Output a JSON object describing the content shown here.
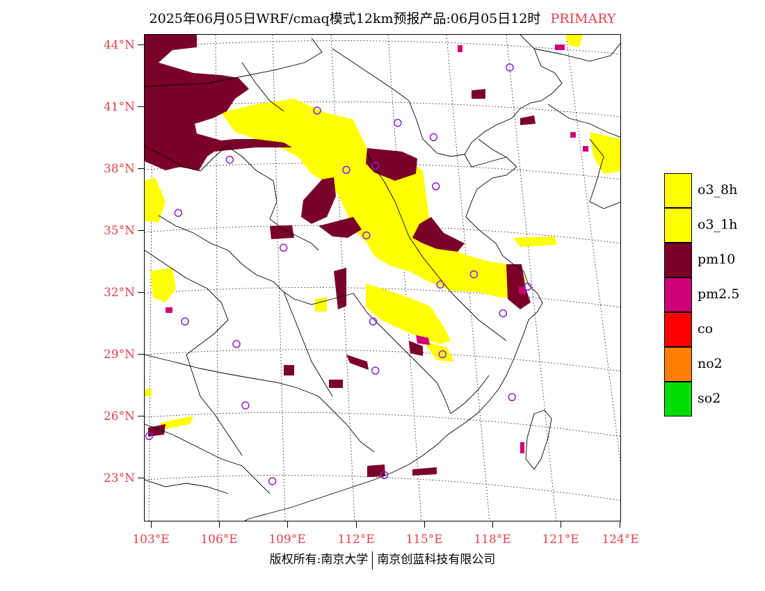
{
  "header": {
    "title": "2025年06月05日WRF/cmaq模式12km预报产品:06月05日12时",
    "tag": "PRIMARY"
  },
  "map": {
    "lat_labels": [
      "44°N",
      "41°N",
      "38°N",
      "35°N",
      "32°N",
      "29°N",
      "26°N",
      "23°N"
    ],
    "lon_labels": [
      "103°E",
      "106°E",
      "109°E",
      "112°E",
      "115°E",
      "118°E",
      "121°E",
      "124°E"
    ],
    "lon_range": [
      102.7,
      124
    ],
    "lat_range": [
      20.8,
      44.6
    ],
    "colors": {
      "o3_8h": "#ffff00",
      "o3_1h": "#ffff00",
      "pm10": "#7a0029",
      "pm25": "#cc0077",
      "station": "#8822cc"
    },
    "stations": [
      [
        119.0,
        43.0
      ],
      [
        110.4,
        40.9
      ],
      [
        114.0,
        40.3
      ],
      [
        115.6,
        39.6
      ],
      [
        106.5,
        38.5
      ],
      [
        111.7,
        38.0
      ],
      [
        113.0,
        38.2
      ],
      [
        115.7,
        37.2
      ],
      [
        104.2,
        35.9
      ],
      [
        112.6,
        34.8
      ],
      [
        108.9,
        34.2
      ],
      [
        117.4,
        32.9
      ],
      [
        115.9,
        32.4
      ],
      [
        119.8,
        32.3
      ],
      [
        104.5,
        30.6
      ],
      [
        112.9,
        30.6
      ],
      [
        118.7,
        31.0
      ],
      [
        106.8,
        29.5
      ],
      [
        116.0,
        29.0
      ],
      [
        113.0,
        28.2
      ],
      [
        119.1,
        26.9
      ],
      [
        107.2,
        26.5
      ],
      [
        102.9,
        25.0
      ],
      [
        108.4,
        22.8
      ],
      [
        113.4,
        23.1
      ]
    ]
  },
  "legend": {
    "items": [
      {
        "label": "o3_8h",
        "color": "#ffff00"
      },
      {
        "label": "o3_1h",
        "color": "#ffff00"
      },
      {
        "label": "pm10",
        "color": "#7a0029"
      },
      {
        "label": "pm2.5",
        "color": "#cc0077"
      },
      {
        "label": "co",
        "color": "#ff0000"
      },
      {
        "label": "no2",
        "color": "#ff7f00"
      },
      {
        "label": "so2",
        "color": "#00dd00"
      }
    ]
  },
  "footer": {
    "left": "版权所有:南京大学",
    "right": "南京创蓝科技有限公司"
  }
}
